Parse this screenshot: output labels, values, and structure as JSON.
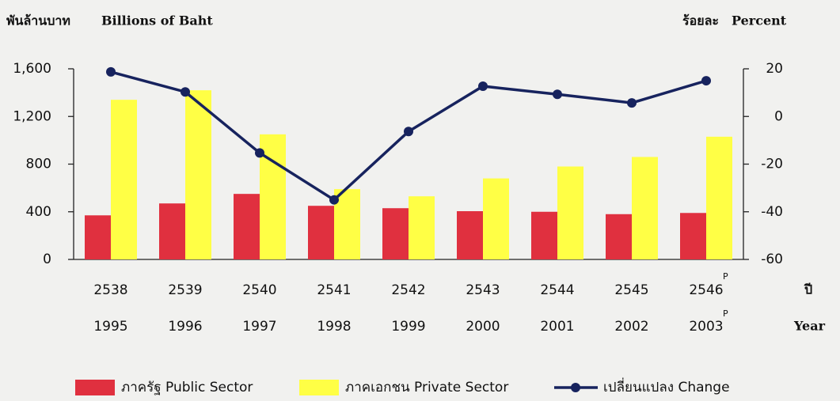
{
  "chart_data": {
    "type": "bar_line",
    "y_axis_title_thai": "พันล้านบาท",
    "y_axis_title": "Billions of Baht",
    "y2_axis_title_thai": "ร้อยละ",
    "y2_axis_title": "Percent",
    "x_axis_title_thai": "ปี",
    "x_axis_title": "Year",
    "categories_thai": [
      "2538",
      "2539",
      "2540",
      "2541",
      "2542",
      "2543",
      "2544",
      "2545",
      "2546"
    ],
    "categories": [
      "1995",
      "1996",
      "1997",
      "1998",
      "1999",
      "2000",
      "2001",
      "2002",
      "2003"
    ],
    "footnote_marks": [
      null,
      null,
      null,
      null,
      null,
      null,
      null,
      null,
      "P"
    ],
    "series": [
      {
        "name": "ภาครัฐ Public Sector",
        "type": "bar",
        "color": "#e0303f",
        "values": [
          370,
          470,
          550,
          450,
          430,
          405,
          400,
          380,
          390
        ]
      },
      {
        "name": "ภาคเอกชน Private Sector",
        "type": "bar",
        "color": "#ffff45",
        "values": [
          1340,
          1420,
          1050,
          590,
          530,
          680,
          780,
          860,
          1030
        ]
      },
      {
        "name": "เปลี่ยนแปลง Change",
        "type": "line",
        "axis": "y2",
        "color": "#17235e",
        "values": [
          18.7,
          10.3,
          -15.3,
          -35,
          -6.3,
          12.7,
          9.3,
          5.7,
          15
        ]
      }
    ],
    "ylim": [
      0,
      1600
    ],
    "yticks": [
      0,
      400,
      800,
      {
        "value": 1200,
        "label": "1,200"
      },
      {
        "value": 1600,
        "label": "1,600"
      }
    ],
    "y2lim": [
      -60,
      20
    ],
    "y2ticks": [
      -60,
      -40,
      -20,
      0,
      20
    ],
    "grid": false
  }
}
